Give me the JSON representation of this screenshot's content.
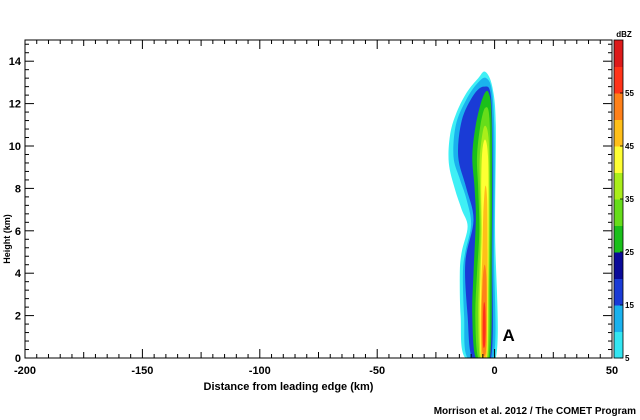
{
  "chart_data": {
    "type": "heatmap",
    "xlabel": "Distance from leading edge (km)",
    "ylabel": "Height (km)",
    "xlim": [
      -200,
      50
    ],
    "ylim": [
      0,
      15
    ],
    "x_ticks": [
      -200,
      -150,
      -100,
      -50,
      0,
      50
    ],
    "y_ticks": [
      0,
      2,
      4,
      6,
      8,
      10,
      12,
      14
    ],
    "grid": false,
    "colorbar": {
      "unit": "dBZ",
      "range": [
        5,
        65
      ],
      "tick_labels": [
        5,
        15,
        25,
        35,
        45,
        55
      ],
      "colors": [
        "#33e6f2",
        "#1ab2ee",
        "#1a3bd6",
        "#0a0a99",
        "#1ac01a",
        "#66dd1a",
        "#aaee1a",
        "#ffff33",
        "#ffbf19",
        "#ff8019",
        "#ff3319",
        "#dd1a1a"
      ]
    },
    "contour_levels": [
      {
        "dbz": 5,
        "color": "#3ff0f5",
        "boundary": [
          [
            -12.5,
            0
          ],
          [
            -14.5,
            2
          ],
          [
            -14.8,
            4
          ],
          [
            -14,
            5
          ],
          [
            -11.5,
            6.2
          ],
          [
            -14,
            7
          ],
          [
            -17,
            8
          ],
          [
            -19.5,
            9.2
          ],
          [
            -19,
            10.5
          ],
          [
            -16.5,
            11.5
          ],
          [
            -12,
            12.5
          ],
          [
            -7,
            13.2
          ],
          [
            -4,
            13.5
          ],
          [
            -1,
            12.8
          ],
          [
            0.5,
            11
          ],
          [
            0.2,
            6
          ],
          [
            0.5,
            0
          ]
        ]
      },
      {
        "dbz": 10,
        "color": "#1ab2ee",
        "boundary": [
          [
            -11.5,
            0
          ],
          [
            -13,
            2
          ],
          [
            -13.5,
            4
          ],
          [
            -12.5,
            5
          ],
          [
            -10,
            6.3
          ],
          [
            -12,
            7.5
          ],
          [
            -15,
            8.5
          ],
          [
            -17.5,
            9.5
          ],
          [
            -16.5,
            11
          ],
          [
            -12,
            12.2
          ],
          [
            -7,
            13
          ],
          [
            -3.5,
            13.2
          ],
          [
            -1,
            12.5
          ],
          [
            0,
            10
          ],
          [
            -0.2,
            5
          ],
          [
            -0.5,
            0
          ]
        ]
      },
      {
        "dbz": 15,
        "color": "#1a3bd6",
        "boundary": [
          [
            -9.5,
            0
          ],
          [
            -11.5,
            2
          ],
          [
            -12.5,
            4.5
          ],
          [
            -9,
            6.5
          ],
          [
            -12,
            8
          ],
          [
            -15.5,
            9.5
          ],
          [
            -14,
            11.2
          ],
          [
            -9,
            12.4
          ],
          [
            -4.5,
            12.8
          ],
          [
            -1.5,
            12.3
          ],
          [
            -0.8,
            9
          ],
          [
            -1,
            5
          ],
          [
            -1.5,
            0
          ]
        ]
      },
      {
        "dbz": 20,
        "color": "#1ac01a",
        "boundary": [
          [
            -8,
            0
          ],
          [
            -9.5,
            2
          ],
          [
            -9,
            4
          ],
          [
            -8,
            6.5
          ],
          [
            -8.5,
            8
          ],
          [
            -9.5,
            9.5
          ],
          [
            -8,
            11
          ],
          [
            -5,
            12.3
          ],
          [
            -2.5,
            12.5
          ],
          [
            -1.2,
            11
          ],
          [
            -1.2,
            5
          ],
          [
            -2,
            0
          ]
        ]
      },
      {
        "dbz": 25,
        "color": "#66dd1a",
        "boundary": [
          [
            -7,
            0
          ],
          [
            -8.2,
            2
          ],
          [
            -7.5,
            4
          ],
          [
            -6.5,
            6
          ],
          [
            -7,
            8
          ],
          [
            -7.5,
            9.5
          ],
          [
            -6,
            11
          ],
          [
            -4,
            11.8
          ],
          [
            -2.2,
            11.3
          ],
          [
            -1.8,
            8
          ],
          [
            -2,
            4
          ],
          [
            -2.5,
            0
          ]
        ]
      },
      {
        "dbz": 30,
        "color": "#aaee1a",
        "boundary": [
          [
            -6.2,
            0
          ],
          [
            -7,
            2
          ],
          [
            -6.5,
            4
          ],
          [
            -6,
            6
          ],
          [
            -6.2,
            8
          ],
          [
            -6.3,
            9.5
          ],
          [
            -4.5,
            10.9
          ],
          [
            -2.6,
            10.4
          ],
          [
            -2.2,
            8
          ],
          [
            -2.4,
            4
          ],
          [
            -3,
            0
          ]
        ]
      },
      {
        "dbz": 35,
        "color": "#ffff33",
        "boundary": [
          [
            -5.8,
            0
          ],
          [
            -6.4,
            2
          ],
          [
            -6,
            4
          ],
          [
            -5.5,
            6
          ],
          [
            -5.7,
            8
          ],
          [
            -5.3,
            9.7
          ],
          [
            -4,
            10.3
          ],
          [
            -2.8,
            9.5
          ],
          [
            -2.6,
            7
          ],
          [
            -2.8,
            3
          ],
          [
            -3.3,
            0
          ]
        ]
      },
      {
        "dbz": 40,
        "color": "#ffbf19",
        "boundary": [
          [
            -5.5,
            0
          ],
          [
            -5.9,
            1.5
          ],
          [
            -5.6,
            3.5
          ],
          [
            -5.2,
            5
          ],
          [
            -4.8,
            6.8
          ],
          [
            -4,
            8.1
          ],
          [
            -3.2,
            7.5
          ],
          [
            -3,
            5
          ],
          [
            -3.1,
            2
          ],
          [
            -3.5,
            0
          ]
        ]
      },
      {
        "dbz": 45,
        "color": "#ff8019",
        "boundary": [
          [
            -5.2,
            0.3
          ],
          [
            -5.5,
            2
          ],
          [
            -5.1,
            3.6
          ],
          [
            -4.3,
            4.4
          ],
          [
            -3.5,
            3.8
          ],
          [
            -3.4,
            2
          ],
          [
            -3.7,
            0.3
          ]
        ]
      },
      {
        "dbz": 50,
        "color": "#ff3319",
        "boundary": [
          [
            -4.9,
            0.6
          ],
          [
            -5,
            1.8
          ],
          [
            -4.6,
            2.6
          ],
          [
            -4,
            2.4
          ],
          [
            -3.8,
            1.4
          ],
          [
            -4.1,
            0.6
          ]
        ]
      }
    ],
    "annotations": [
      {
        "text": "A",
        "x": 6,
        "y": 0.8
      }
    ],
    "credit": "Morrison et al. 2012 / The COMET Program"
  }
}
